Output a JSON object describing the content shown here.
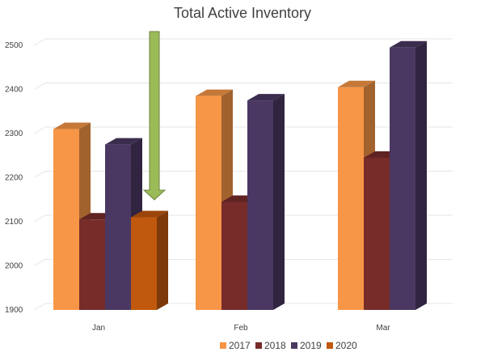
{
  "chart_data": {
    "type": "bar",
    "title": "Total Active Inventory",
    "categories": [
      "Jan",
      "Feb",
      "Mar"
    ],
    "ylim": [
      1900,
      2500
    ],
    "yticks": [
      1900,
      2000,
      2100,
      2200,
      2300,
      2400,
      2500
    ],
    "grid": true,
    "legend_position": "bottom",
    "style": "3d-column",
    "series": [
      {
        "name": "2017",
        "color": "#f79646",
        "values": [
          2310,
          2385,
          2405
        ]
      },
      {
        "name": "2018",
        "color": "#772c2a",
        "values": [
          2105,
          2145,
          2245
        ]
      },
      {
        "name": "2019",
        "color": "#4a3862",
        "values": [
          2275,
          2375,
          2495
        ]
      },
      {
        "name": "2020",
        "color": "#c0580e",
        "values": [
          2110,
          null,
          null
        ]
      }
    ],
    "annotation": {
      "type": "down-arrow",
      "color": "#9bbb59",
      "target_category": "Jan",
      "target_series": "2020"
    }
  }
}
